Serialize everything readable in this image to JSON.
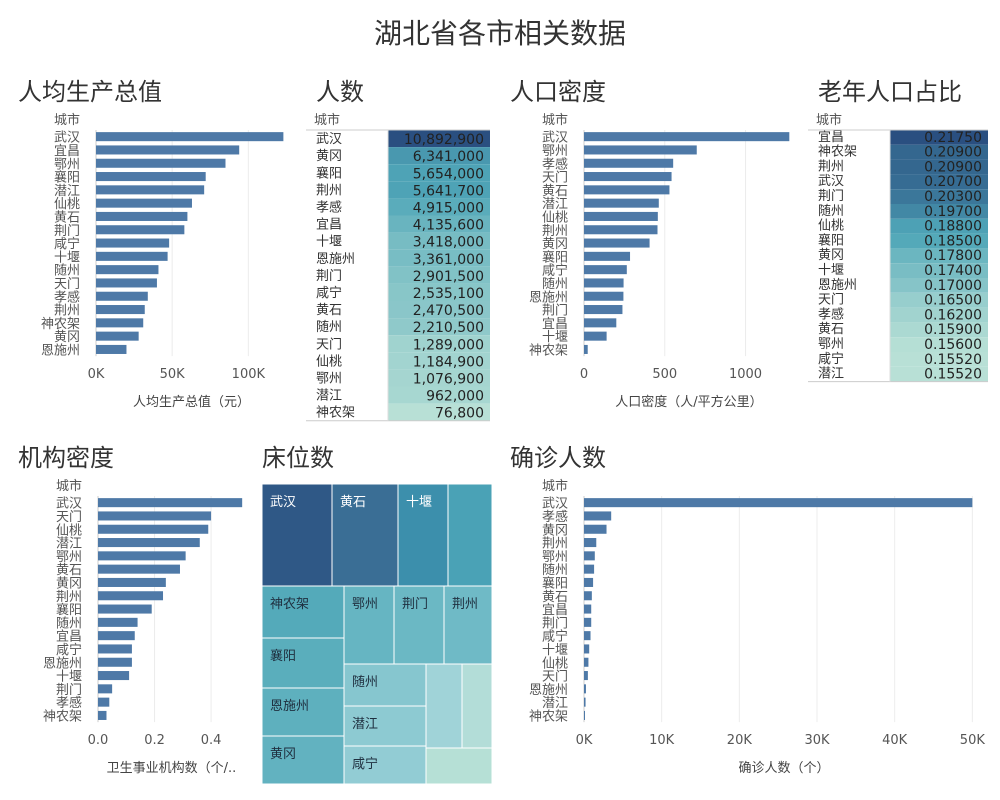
{
  "page": {
    "title": "湖北省各市相关数据"
  },
  "colors": {
    "bar": "#4e79a7",
    "axis": "#cccccc",
    "text": "#555555"
  },
  "chart_data": [
    {
      "id": "gdp",
      "type": "bar",
      "title": "人均生产总值",
      "dim_label": "城市",
      "xlabel": "人均生产总值（元）",
      "categories": [
        "武汉",
        "宜昌",
        "鄂州",
        "襄阳",
        "潜江",
        "仙桃",
        "黄石",
        "荆门",
        "咸宁",
        "十堰",
        "随州",
        "天门",
        "孝感",
        "荆州",
        "神农架",
        "黄冈",
        "恩施州"
      ],
      "values": [
        123000,
        94000,
        85000,
        72000,
        71000,
        63000,
        60000,
        58000,
        48000,
        47000,
        41000,
        40000,
        34000,
        32000,
        31000,
        28000,
        20000
      ],
      "ticks": [
        0,
        50000,
        100000
      ],
      "tick_labels": [
        "0K",
        "50K",
        "100K"
      ],
      "xlim": [
        0,
        128000
      ]
    },
    {
      "id": "people",
      "type": "table",
      "title": "人数",
      "dim_label": "城市",
      "categories": [
        "武汉",
        "黄冈",
        "襄阳",
        "荆州",
        "孝感",
        "宜昌",
        "十堰",
        "恩施州",
        "荆门",
        "咸宁",
        "黄石",
        "随州",
        "天门",
        "仙桃",
        "鄂州",
        "潜江",
        "神农架"
      ],
      "values": [
        10892900,
        6341000,
        5654000,
        5641700,
        4915000,
        4135600,
        3418000,
        3361000,
        2901500,
        2535100,
        2470500,
        2210500,
        1289000,
        1184900,
        1076900,
        962000,
        76800
      ],
      "labels": [
        "10,892,900",
        "6,341,000",
        "5,654,000",
        "5,641,700",
        "4,915,000",
        "4,135,600",
        "3,418,000",
        "3,361,000",
        "2,901,500",
        "2,535,100",
        "2,470,500",
        "2,210,500",
        "1,289,000",
        "1,184,900",
        "1,076,900",
        "962,000",
        "76,800"
      ]
    },
    {
      "id": "density",
      "type": "bar",
      "title": "人口密度",
      "dim_label": "城市",
      "xlabel": "人口密度（人/平方公里）",
      "categories": [
        "武汉",
        "鄂州",
        "孝感",
        "天门",
        "黄石",
        "潜江",
        "仙桃",
        "荆州",
        "黄冈",
        "襄阳",
        "咸宁",
        "随州",
        "恩施州",
        "荆门",
        "宜昌",
        "十堰",
        "神农架"
      ],
      "values": [
        1271,
        698,
        552,
        542,
        529,
        463,
        457,
        455,
        406,
        285,
        265,
        245,
        244,
        238,
        200,
        140,
        23
      ],
      "ticks": [
        0,
        500,
        1000
      ],
      "tick_labels": [
        "0",
        "500",
        "1000"
      ],
      "xlim": [
        0,
        1300
      ]
    },
    {
      "id": "elderly",
      "type": "table",
      "title": "老年人口占比",
      "dim_label": "城市",
      "categories": [
        "宜昌",
        "神农架",
        "荆州",
        "武汉",
        "荆门",
        "随州",
        "仙桃",
        "襄阳",
        "黄冈",
        "十堰",
        "恩施州",
        "天门",
        "孝感",
        "黄石",
        "鄂州",
        "咸宁",
        "潜江"
      ],
      "values": [
        0.2175,
        0.209,
        0.209,
        0.207,
        0.203,
        0.197,
        0.188,
        0.185,
        0.178,
        0.174,
        0.17,
        0.165,
        0.162,
        0.159,
        0.156,
        0.1552,
        0.1552
      ],
      "labels": [
        "0.21750",
        "0.20900",
        "0.20900",
        "0.20700",
        "0.20300",
        "0.19700",
        "0.18800",
        "0.18500",
        "0.17800",
        "0.17400",
        "0.17000",
        "0.16500",
        "0.16200",
        "0.15900",
        "0.15600",
        "0.15520",
        "0.15520"
      ]
    },
    {
      "id": "inst",
      "type": "bar",
      "title": "机构密度",
      "dim_label": "城市",
      "xlabel": "卫生事业机构数（个/..",
      "categories": [
        "武汉",
        "天门",
        "仙桃",
        "潜江",
        "鄂州",
        "黄石",
        "黄冈",
        "荆州",
        "襄阳",
        "随州",
        "宜昌",
        "咸宁",
        "恩施州",
        "十堰",
        "荆门",
        "孝感",
        "神农架"
      ],
      "values": [
        0.51,
        0.4,
        0.39,
        0.36,
        0.31,
        0.29,
        0.24,
        0.23,
        0.19,
        0.14,
        0.13,
        0.12,
        0.12,
        0.11,
        0.05,
        0.04,
        0.03
      ],
      "ticks": [
        0,
        0.2,
        0.4
      ],
      "tick_labels": [
        "0.0",
        "0.2",
        "0.4"
      ],
      "xlim": [
        0,
        0.52
      ]
    },
    {
      "id": "beds",
      "type": "treemap",
      "title": "床位数",
      "cells": [
        {
          "label": "武汉",
          "color": "#2f5886"
        },
        {
          "label": "黄石",
          "color": "#3a6e95"
        },
        {
          "label": "十堰",
          "color": "#3c8fac"
        },
        {
          "label": "",
          "color": "#4aa2b6"
        },
        {
          "label": "神农架",
          "color": "#54aaba"
        },
        {
          "label": "鄂州",
          "color": "#66b5c2"
        },
        {
          "label": "荆门",
          "color": "#6bb8c4"
        },
        {
          "label": "荆州",
          "color": "#6fbac6"
        },
        {
          "label": "襄阳",
          "color": "#5aaebc"
        },
        {
          "label": "恩施州",
          "color": "#5eb0be"
        },
        {
          "label": "黄冈",
          "color": "#62b2c0"
        },
        {
          "label": "随州",
          "color": "#86c6cf"
        },
        {
          "label": "潜江",
          "color": "#8dcad2"
        },
        {
          "label": "咸宁",
          "color": "#92ccd4"
        },
        {
          "label": "",
          "color": "#a0d3d8"
        },
        {
          "label": "",
          "color": "#b3ddd8"
        },
        {
          "label": "",
          "color": "#b6e0d6"
        }
      ]
    },
    {
      "id": "cases",
      "type": "bar",
      "title": "确诊人数",
      "dim_label": "城市",
      "xlabel": "确诊人数（个）",
      "categories": [
        "武汉",
        "孝感",
        "黄冈",
        "荆州",
        "鄂州",
        "随州",
        "襄阳",
        "黄石",
        "宜昌",
        "荆门",
        "咸宁",
        "十堰",
        "仙桃",
        "天门",
        "恩施州",
        "潜江",
        "神农架"
      ],
      "values": [
        50000,
        3500,
        2900,
        1580,
        1390,
        1300,
        1170,
        1010,
        930,
        930,
        840,
        670,
        570,
        500,
        250,
        200,
        11
      ],
      "ticks": [
        0,
        10000,
        20000,
        30000,
        40000,
        50000
      ],
      "tick_labels": [
        "0K",
        "10K",
        "20K",
        "30K",
        "40K",
        "50K"
      ],
      "xlim": [
        0,
        51500
      ]
    }
  ]
}
